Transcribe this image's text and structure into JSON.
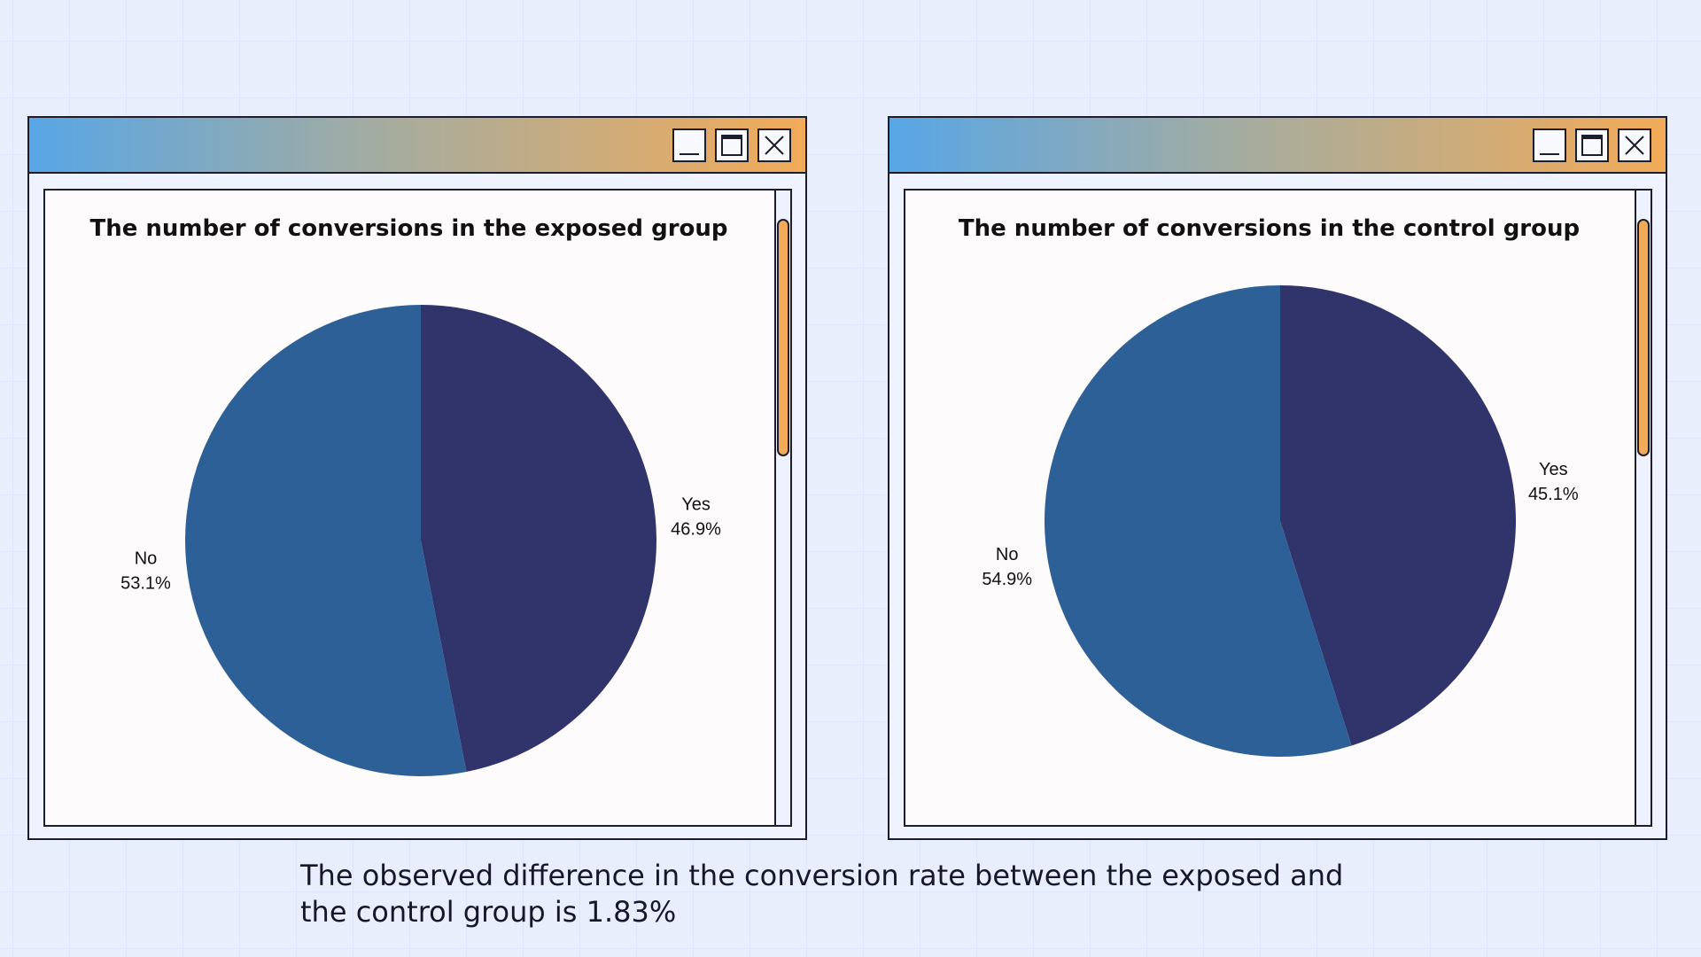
{
  "chart_data": [
    {
      "type": "pie",
      "title": "The number of conversions in the exposed group",
      "slices": [
        {
          "label": "Yes",
          "value": 46.9,
          "display": "46.9%",
          "color": "#30346b"
        },
        {
          "label": "No",
          "value": 53.1,
          "display": "53.1%",
          "color": "#2e6098"
        }
      ],
      "start_angle_deg": 0,
      "direction": "clockwise"
    },
    {
      "type": "pie",
      "title": "The number of conversions in the control group",
      "slices": [
        {
          "label": "Yes",
          "value": 45.1,
          "display": "45.1%",
          "color": "#30346b"
        },
        {
          "label": "No",
          "value": 54.9,
          "display": "54.9%",
          "color": "#2e6098"
        }
      ],
      "start_angle_deg": 0,
      "direction": "clockwise"
    }
  ],
  "caption": {
    "line1": "The observed difference in the conversion rate between the exposed and",
    "line2": "the control group is 1.83%"
  },
  "window": {
    "icons": [
      "minimize-icon",
      "maximize-icon",
      "close-icon"
    ],
    "titlebar_gradient": [
      "#58a6e6",
      "#f2ab58"
    ],
    "scrollbar_color": "#f2ab58"
  }
}
